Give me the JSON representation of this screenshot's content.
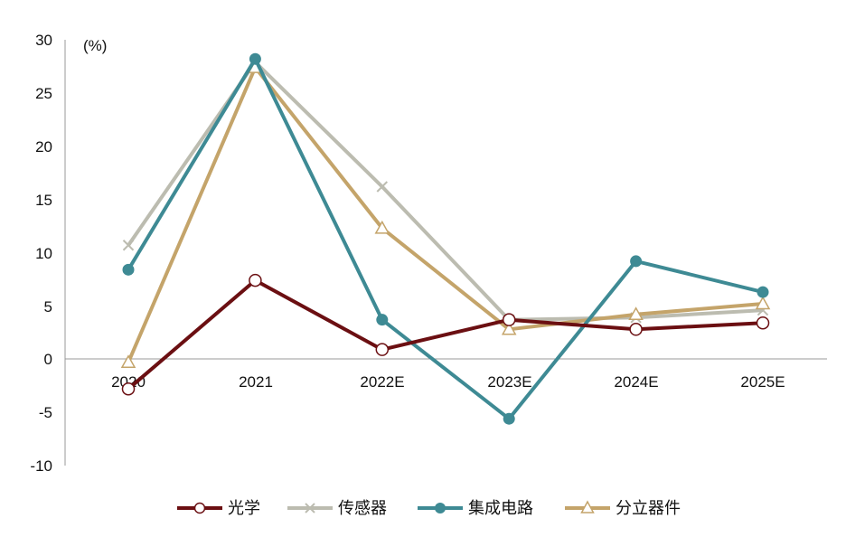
{
  "chart_data": {
    "type": "line",
    "unit_label": "(%)",
    "categories": [
      "2020",
      "2021",
      "2022E",
      "2023E",
      "2024E",
      "2025E"
    ],
    "y_ticks": [
      "30",
      "25",
      "20",
      "15",
      "10",
      "5",
      "0",
      "-5",
      "-10"
    ],
    "ylim": [
      -10,
      30
    ],
    "grid": false,
    "legend_position": "bottom",
    "series": [
      {
        "name": "光学",
        "values": [
          -2.8,
          7.4,
          0.9,
          3.7,
          2.8,
          3.4
        ],
        "color": "#6b0f12",
        "marker": "open-circle"
      },
      {
        "name": "传感器",
        "values": [
          10.7,
          27.9,
          16.2,
          3.7,
          3.9,
          4.6
        ],
        "color": "#bcbcb0",
        "marker": "x"
      },
      {
        "name": "集成电路",
        "values": [
          8.4,
          28.2,
          3.7,
          -5.6,
          9.2,
          6.3
        ],
        "color": "#3e8a94",
        "marker": "filled-circle"
      },
      {
        "name": "分立器件",
        "values": [
          -0.3,
          27.4,
          12.3,
          2.8,
          4.2,
          5.2
        ],
        "color": "#c4a46a",
        "marker": "open-triangle"
      }
    ]
  }
}
